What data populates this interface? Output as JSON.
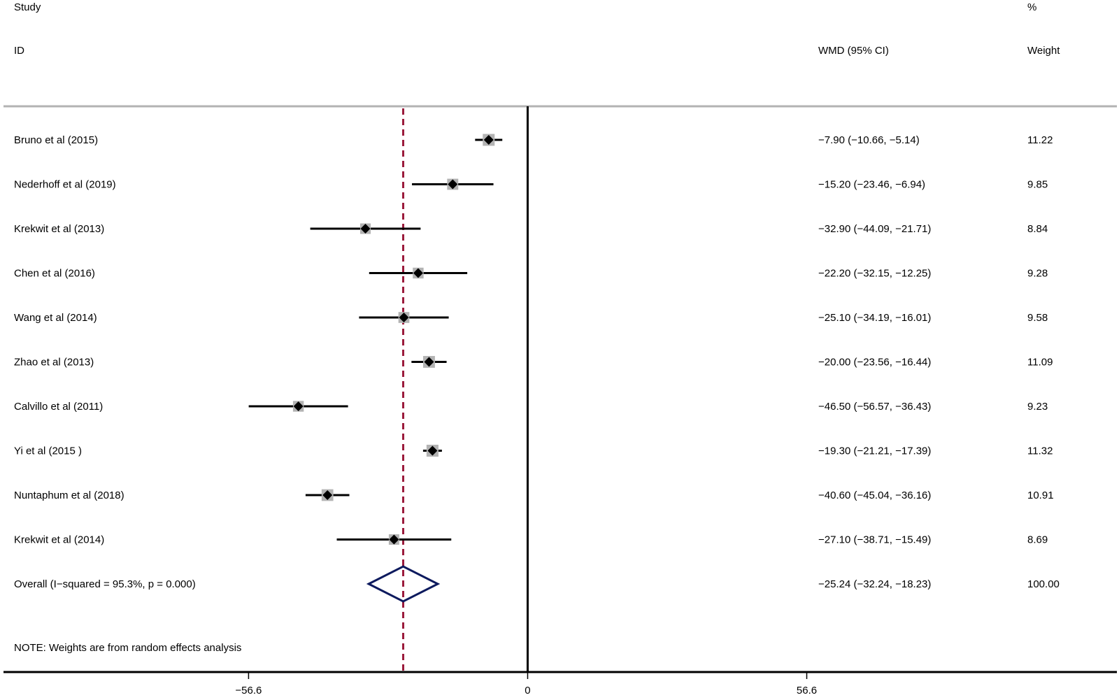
{
  "header": {
    "study_line1": "Study",
    "study_line2": "ID",
    "effect_label": "WMD (95% CI)",
    "weight_line1": "%",
    "weight_line2": "Weight"
  },
  "note": "NOTE: Weights are from random effects analysis",
  "chart_data": {
    "type": "forest",
    "effect_measure": "WMD (95% CI)",
    "xlim": [
      -106.3,
      119.5
    ],
    "xticks": [
      -56.6,
      0,
      56.6
    ],
    "xtick_labels": [
      "−56.6",
      "0",
      "56.6"
    ],
    "null_line": 0,
    "colors": {
      "overall_diamond": "#0d1a5e",
      "overall_line": "#9b1b3c",
      "marker_box": "#b3b3b3",
      "point": "#000000"
    },
    "studies": [
      {
        "label": "Bruno et al (2015)",
        "effect": -7.9,
        "lo": -10.66,
        "hi": -5.14,
        "ci_text": "−7.90 (−10.66, −5.14)",
        "weight": 11.22,
        "weight_text": "11.22"
      },
      {
        "label": "Nederhoff et al (2019)",
        "effect": -15.2,
        "lo": -23.46,
        "hi": -6.94,
        "ci_text": "−15.20 (−23.46, −6.94)",
        "weight": 9.85,
        "weight_text": "9.85"
      },
      {
        "label": "Krekwit et al (2013)",
        "effect": -32.9,
        "lo": -44.09,
        "hi": -21.71,
        "ci_text": "−32.90 (−44.09, −21.71)",
        "weight": 8.84,
        "weight_text": "8.84"
      },
      {
        "label": "Chen et al (2016)",
        "effect": -22.2,
        "lo": -32.15,
        "hi": -12.25,
        "ci_text": "−22.20 (−32.15, −12.25)",
        "weight": 9.28,
        "weight_text": "9.28"
      },
      {
        "label": "Wang et al (2014)",
        "effect": -25.1,
        "lo": -34.19,
        "hi": -16.01,
        "ci_text": "−25.10 (−34.19, −16.01)",
        "weight": 9.58,
        "weight_text": "9.58"
      },
      {
        "label": "Zhao et al (2013)",
        "effect": -20.0,
        "lo": -23.56,
        "hi": -16.44,
        "ci_text": "−20.00 (−23.56, −16.44)",
        "weight": 11.09,
        "weight_text": "11.09"
      },
      {
        "label": "Calvillo et al (2011)",
        "effect": -46.5,
        "lo": -56.57,
        "hi": -36.43,
        "ci_text": "−46.50 (−56.57, −36.43)",
        "weight": 9.23,
        "weight_text": "9.23"
      },
      {
        "label": "Yi et al (2015 )",
        "effect": -19.3,
        "lo": -21.21,
        "hi": -17.39,
        "ci_text": "−19.30 (−21.21, −17.39)",
        "weight": 11.32,
        "weight_text": "11.32"
      },
      {
        "label": "Nuntaphum et al (2018)",
        "effect": -40.6,
        "lo": -45.04,
        "hi": -36.16,
        "ci_text": "−40.60 (−45.04, −36.16)",
        "weight": 10.91,
        "weight_text": "10.91"
      },
      {
        "label": "Krekwit et al (2014)",
        "effect": -27.1,
        "lo": -38.71,
        "hi": -15.49,
        "ci_text": "−27.10 (−38.71, −15.49)",
        "weight": 8.69,
        "weight_text": "8.69"
      }
    ],
    "overall": {
      "label": "Overall  (I−squared = 95.3%, p = 0.000)",
      "effect": -25.24,
      "lo": -32.24,
      "hi": -18.23,
      "ci_text": "−25.24 (−32.24, −18.23)",
      "weight": 100.0,
      "weight_text": "100.00"
    }
  }
}
